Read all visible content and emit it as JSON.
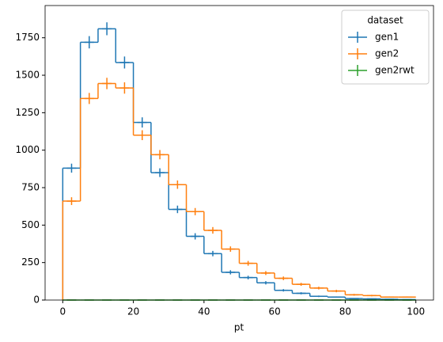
{
  "chart_data": {
    "type": "histogram",
    "xlabel": "pt",
    "legend_title": "dataset",
    "legend": "upper right",
    "bins": [
      0,
      5,
      10,
      15,
      20,
      25,
      30,
      35,
      40,
      45,
      50,
      55,
      60,
      65,
      70,
      75,
      80,
      85,
      90,
      95,
      100
    ],
    "series": [
      {
        "name": "gen1",
        "color": "#1f77b4",
        "values": [
          880,
          1720,
          1810,
          1585,
          1185,
          850,
          605,
          425,
          310,
          185,
          150,
          115,
          65,
          45,
          25,
          20,
          10,
          8,
          5,
          3
        ],
        "errors": [
          30,
          41,
          43,
          40,
          34,
          29,
          25,
          21,
          18,
          14,
          12,
          11,
          8,
          7,
          5,
          4,
          3,
          3,
          2,
          2
        ]
      },
      {
        "name": "gen2",
        "color": "#ff7f0e",
        "values": [
          660,
          1345,
          1445,
          1415,
          1100,
          970,
          770,
          590,
          465,
          340,
          245,
          180,
          145,
          105,
          80,
          60,
          35,
          30,
          20,
          20
        ],
        "errors": [
          26,
          37,
          38,
          38,
          33,
          31,
          28,
          24,
          22,
          18,
          16,
          13,
          12,
          10,
          9,
          8,
          6,
          5,
          4,
          4
        ]
      },
      {
        "name": "gen2rwt",
        "color": "#2ca02c",
        "values": [
          0,
          0,
          0,
          0,
          0,
          0,
          0,
          0,
          0,
          0,
          0,
          0,
          0,
          0,
          0,
          0,
          0,
          0,
          0,
          0
        ],
        "errors": [
          0,
          0,
          0,
          0,
          0,
          0,
          0,
          0,
          0,
          0,
          0,
          0,
          0,
          0,
          0,
          0,
          0,
          0,
          0,
          0
        ]
      }
    ],
    "xlim": [
      -5,
      105
    ],
    "ylim": [
      0,
      1965
    ],
    "xticks": [
      0,
      20,
      40,
      60,
      80,
      100
    ],
    "yticks": [
      0,
      250,
      500,
      750,
      1000,
      1250,
      1500,
      1750
    ]
  }
}
